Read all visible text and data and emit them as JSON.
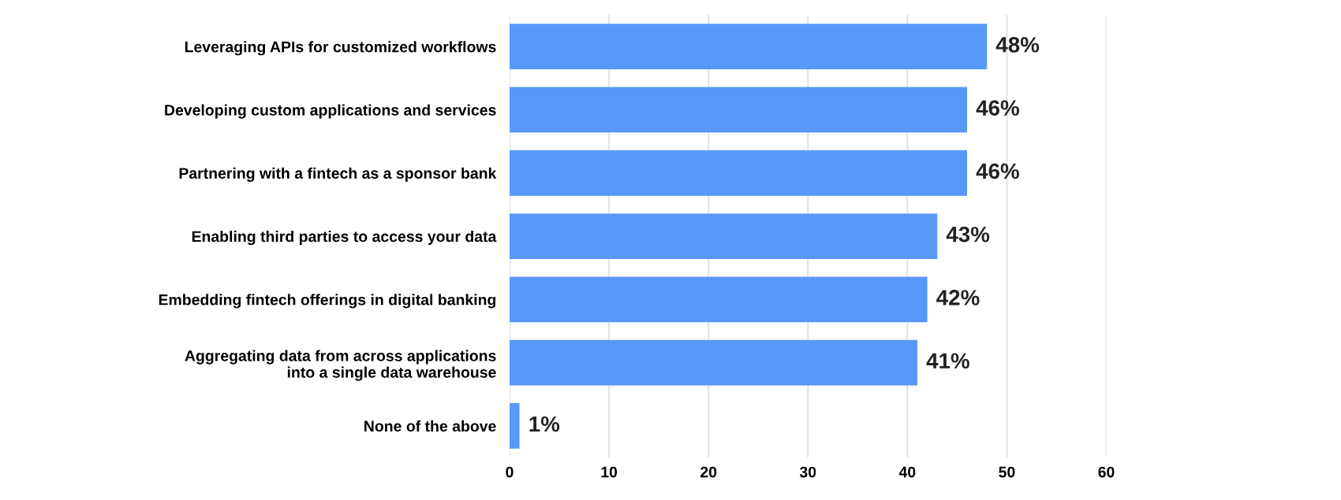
{
  "chart_data": {
    "type": "bar",
    "orientation": "horizontal",
    "categories": [
      "Leveraging APIs for customized workflows",
      "Developing custom applications and services",
      "Partnering with a fintech as a sponsor bank",
      "Enabling third parties to access your data",
      "Embedding fintech offerings in digital banking",
      "Aggregating data from across applications\ninto a single data warehouse",
      "None of the above"
    ],
    "values": [
      48,
      46,
      46,
      43,
      42,
      41,
      1
    ],
    "value_labels": [
      "48%",
      "46%",
      "46%",
      "43%",
      "42%",
      "41%",
      "1%"
    ],
    "color": "#5898f8",
    "xlim": [
      0,
      60
    ],
    "xticks": [
      0,
      10,
      20,
      30,
      40,
      50,
      60
    ],
    "grid": "x",
    "legend": false
  }
}
